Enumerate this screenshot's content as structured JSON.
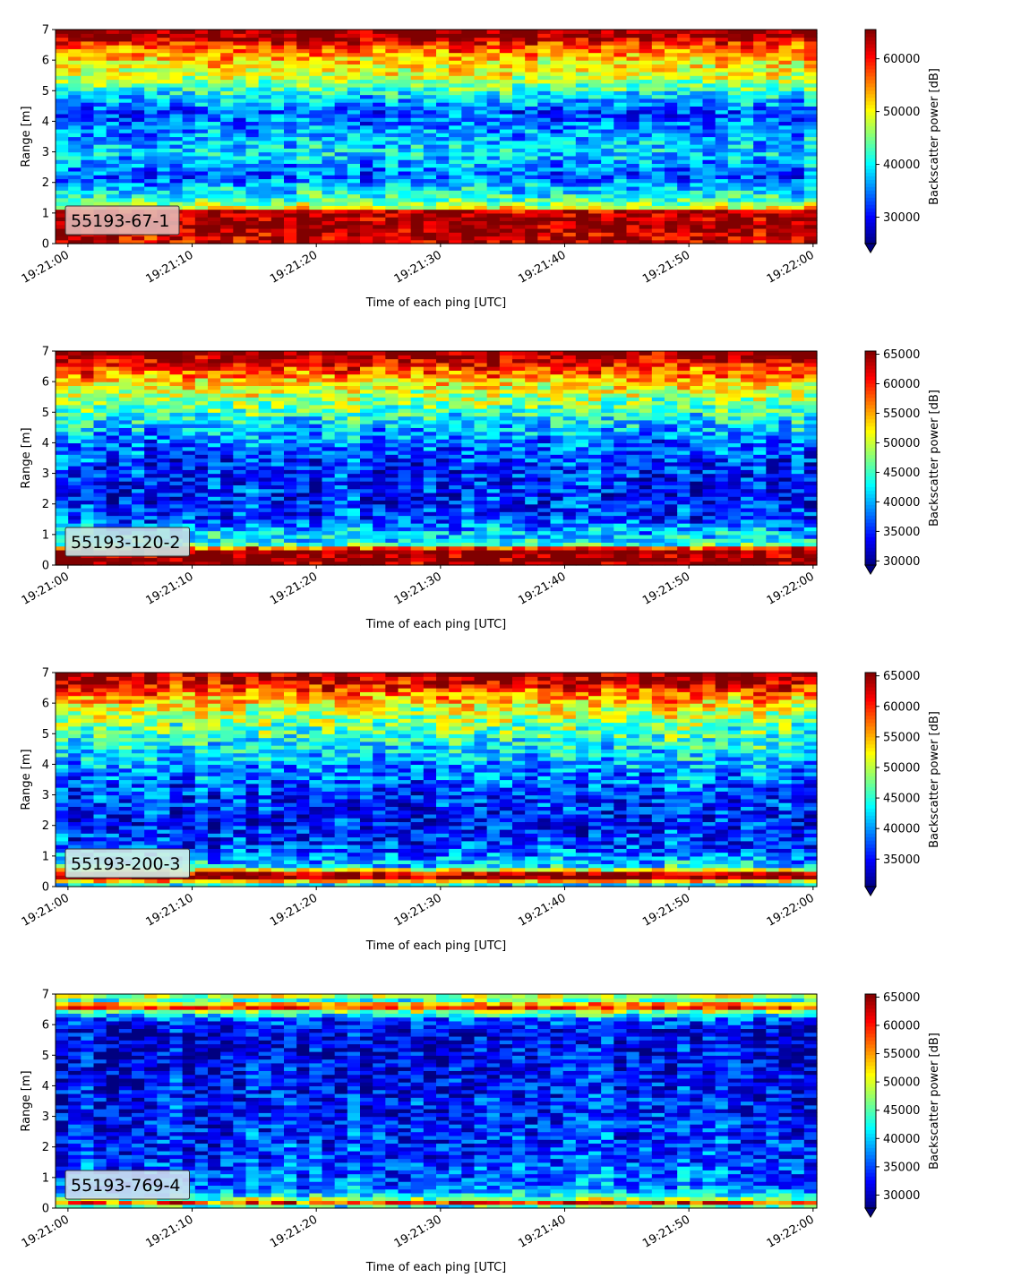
{
  "chart_data": [
    {
      "type": "heatmap",
      "label": "55193-67-1",
      "xlabel": "Time of each ping [UTC]",
      "ylabel": "Range [m]",
      "x_ticks": [
        "19:21:00",
        "19:21:10",
        "19:21:20",
        "19:21:30",
        "19:21:40",
        "19:21:50",
        "19:22:00"
      ],
      "y_ticks": [
        "0",
        "1",
        "2",
        "3",
        "4",
        "5",
        "6",
        "7"
      ],
      "xlim": [
        "19:20:59",
        "19:22:00.3"
      ],
      "ylim": [
        0,
        7
      ],
      "colorbar": {
        "label": "Backscatter power [dB]",
        "ticks": [
          "30000",
          "40000",
          "50000",
          "60000"
        ],
        "range": [
          25000,
          65535
        ],
        "colormap": "jet",
        "extend": "min"
      },
      "profile": [
        [
          0.25,
          62000
        ],
        [
          0.6,
          65535
        ],
        [
          1.1,
          62000
        ],
        [
          1.2,
          48000
        ],
        [
          1.6,
          41000
        ],
        [
          2.2,
          33500
        ],
        [
          3.0,
          39000
        ],
        [
          3.7,
          36000
        ],
        [
          4.3,
          33000
        ],
        [
          4.9,
          40000
        ],
        [
          5.4,
          47500
        ],
        [
          6.0,
          52000
        ],
        [
          6.5,
          58000
        ],
        [
          6.8,
          65535
        ],
        [
          7.0,
          65535
        ]
      ]
    },
    {
      "type": "heatmap",
      "label": "55193-120-2",
      "xlabel": "Time of each ping [UTC]",
      "ylabel": "Range [m]",
      "x_ticks": [
        "19:21:00",
        "19:21:10",
        "19:21:20",
        "19:21:30",
        "19:21:40",
        "19:21:50",
        "19:22:00"
      ],
      "y_ticks": [
        "0",
        "1",
        "2",
        "3",
        "4",
        "5",
        "6",
        "7"
      ],
      "xlim": [
        "19:20:59",
        "19:22:00.3"
      ],
      "ylim": [
        0,
        7
      ],
      "colorbar": {
        "label": "Backscatter power [dB]",
        "ticks": [
          "30000",
          "35000",
          "40000",
          "45000",
          "50000",
          "55000",
          "60000",
          "65000"
        ],
        "range": [
          29300,
          65535
        ],
        "colormap": "jet",
        "extend": "min"
      },
      "profile": [
        [
          0.1,
          65535
        ],
        [
          0.5,
          65535
        ],
        [
          0.7,
          44000
        ],
        [
          1.1,
          40000
        ],
        [
          1.6,
          36000
        ],
        [
          2.5,
          34500
        ],
        [
          3.2,
          35500
        ],
        [
          4.0,
          37500
        ],
        [
          4.8,
          43000
        ],
        [
          5.5,
          49000
        ],
        [
          6.1,
          55000
        ],
        [
          6.6,
          61000
        ],
        [
          6.85,
          65535
        ],
        [
          7.0,
          65535
        ]
      ]
    },
    {
      "type": "heatmap",
      "label": "55193-200-3",
      "xlabel": "Time of each ping [UTC]",
      "ylabel": "Range [m]",
      "x_ticks": [
        "19:21:00",
        "19:21:10",
        "19:21:20",
        "19:21:30",
        "19:21:40",
        "19:21:50",
        "19:22:00"
      ],
      "y_ticks": [
        "0",
        "1",
        "2",
        "3",
        "4",
        "5",
        "6",
        "7"
      ],
      "xlim": [
        "19:20:59",
        "19:22:00.3"
      ],
      "ylim": [
        0,
        7
      ],
      "colorbar": {
        "label": "Backscatter power [dB]",
        "ticks": [
          "35000",
          "40000",
          "45000",
          "50000",
          "55000",
          "60000",
          "65000"
        ],
        "range": [
          30500,
          65535
        ],
        "colormap": "jet",
        "extend": "min"
      },
      "profile": [
        [
          0.05,
          41000
        ],
        [
          0.3,
          65535
        ],
        [
          0.45,
          63000
        ],
        [
          0.65,
          43000
        ],
        [
          1.2,
          37500
        ],
        [
          2.0,
          35500
        ],
        [
          3.0,
          37000
        ],
        [
          4.0,
          40500
        ],
        [
          5.0,
          46000
        ],
        [
          5.8,
          51000
        ],
        [
          6.3,
          57000
        ],
        [
          6.7,
          63000
        ],
        [
          7.0,
          65535
        ]
      ]
    },
    {
      "type": "heatmap",
      "label": "55193-769-4",
      "xlabel": "Time of each ping [UTC]",
      "ylabel": "Range [m]",
      "x_ticks": [
        "19:21:00",
        "19:21:10",
        "19:21:20",
        "19:21:30",
        "19:21:40",
        "19:21:50",
        "19:22:00"
      ],
      "y_ticks": [
        "0",
        "1",
        "2",
        "3",
        "4",
        "5",
        "6",
        "7"
      ],
      "xlim": [
        "19:20:59",
        "19:22:00.3"
      ],
      "ylim": [
        0,
        7
      ],
      "colorbar": {
        "label": "Backscatter power [dB]",
        "ticks": [
          "30000",
          "35000",
          "40000",
          "45000",
          "50000",
          "55000",
          "60000",
          "65000"
        ],
        "range": [
          27700,
          65535
        ],
        "colormap": "jet",
        "extend": "min"
      },
      "profile": [
        [
          0.05,
          42000
        ],
        [
          0.2,
          60000
        ],
        [
          0.35,
          43000
        ],
        [
          0.7,
          37000
        ],
        [
          1.5,
          35000
        ],
        [
          3.0,
          33500
        ],
        [
          4.5,
          32500
        ],
        [
          5.8,
          31500
        ],
        [
          6.2,
          36000
        ],
        [
          6.45,
          48000
        ],
        [
          6.6,
          62000
        ],
        [
          6.8,
          44000
        ],
        [
          7.0,
          52000
        ]
      ]
    }
  ]
}
